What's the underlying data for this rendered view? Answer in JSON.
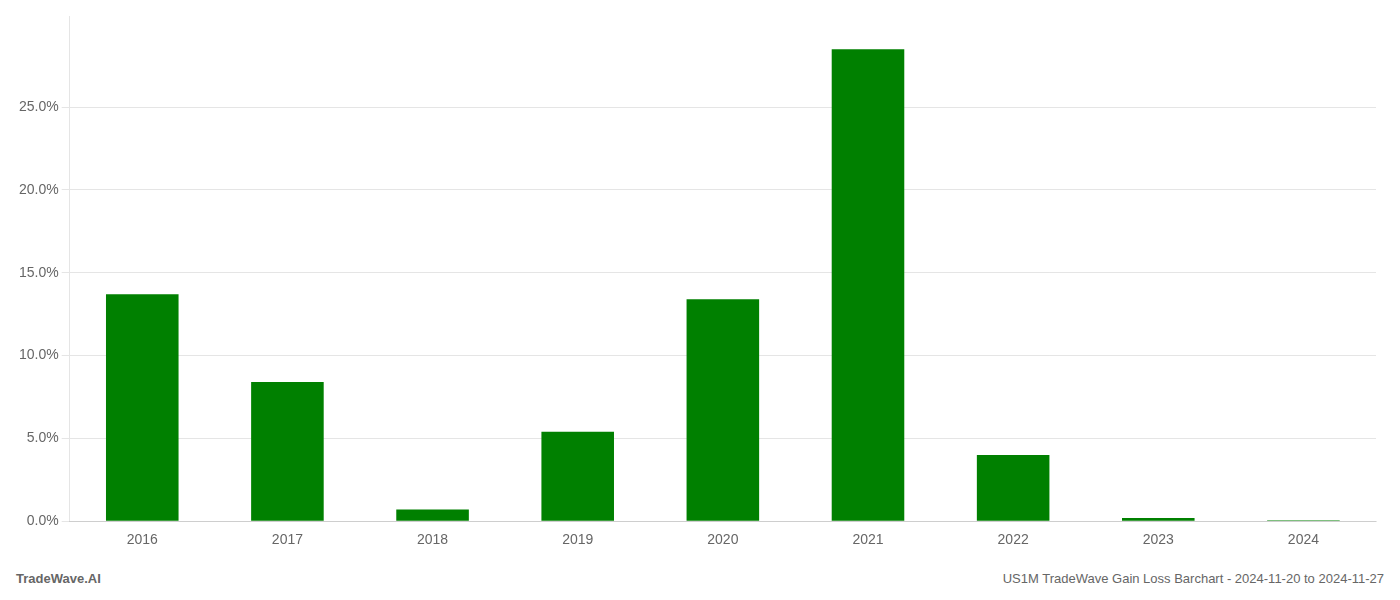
{
  "chart_data": {
    "type": "bar",
    "categories": [
      "2016",
      "2017",
      "2018",
      "2019",
      "2020",
      "2021",
      "2022",
      "2023",
      "2024"
    ],
    "values": [
      0.137,
      0.084,
      0.007,
      0.054,
      0.134,
      0.285,
      0.04,
      0.002,
      0.0005
    ],
    "color": "#008000",
    "ylim": [
      0,
      0.305
    ],
    "yticks": [
      {
        "value": 0.0,
        "label": "0.0%"
      },
      {
        "value": 0.05,
        "label": "5.0%"
      },
      {
        "value": 0.1,
        "label": "10.0%"
      },
      {
        "value": 0.15,
        "label": "15.0%"
      },
      {
        "value": 0.2,
        "label": "20.0%"
      },
      {
        "value": 0.25,
        "label": "25.0%"
      }
    ],
    "grid": true,
    "annotations": [
      "TradeWave.AI",
      "US1M TradeWave Gain Loss Barchart - 2024-11-20 to 2024-11-27"
    ]
  }
}
